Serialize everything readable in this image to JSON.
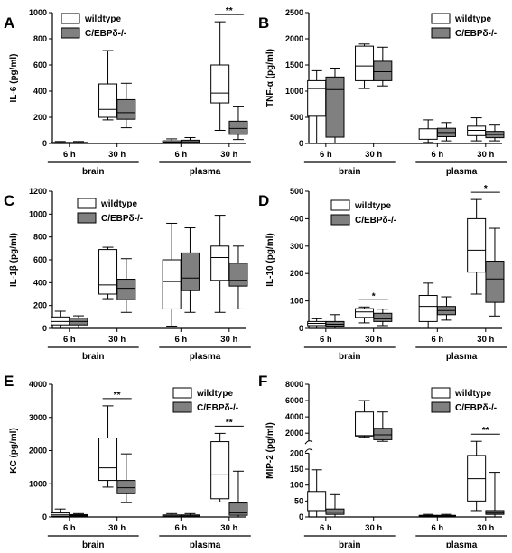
{
  "chart_data": [
    {
      "panel": "A",
      "type": "box",
      "ylabel": "IL-6 (pg/ml)",
      "ylim": [
        0,
        1000
      ],
      "yticks": [
        0,
        200,
        400,
        600,
        800,
        1000
      ],
      "categories": [
        "6 h",
        "30 h",
        "6 h",
        "30 h"
      ],
      "groups": [
        {
          "label": "brain",
          "categories": [
            0,
            1
          ]
        },
        {
          "label": "plasma",
          "categories": [
            2,
            3
          ]
        }
      ],
      "legend": "top-left",
      "series": [
        {
          "name": "wildtype",
          "color": "#ffffff",
          "boxes": [
            {
              "min": 0,
              "q1": 2,
              "median": 5,
              "q3": 8,
              "max": 15
            },
            {
              "min": 180,
              "q1": 200,
              "median": 260,
              "q3": 455,
              "max": 710
            },
            {
              "min": 0,
              "q1": 5,
              "median": 10,
              "q3": 20,
              "max": 35
            },
            {
              "min": 100,
              "q1": 310,
              "median": 385,
              "q3": 600,
              "max": 930
            }
          ]
        },
        {
          "name": "C/EBPδ-/-",
          "color": "#808080",
          "boxes": [
            {
              "min": 0,
              "q1": 2,
              "median": 4,
              "q3": 8,
              "max": 15
            },
            {
              "min": 120,
              "q1": 185,
              "median": 235,
              "q3": 335,
              "max": 460
            },
            {
              "min": 0,
              "q1": 5,
              "median": 12,
              "q3": 25,
              "max": 45
            },
            {
              "min": 30,
              "q1": 70,
              "median": 115,
              "q3": 170,
              "max": 280
            }
          ]
        }
      ],
      "annotations": [
        {
          "text": "**",
          "category": 3
        }
      ]
    },
    {
      "panel": "B",
      "type": "box",
      "ylabel": "TNF-α (pg/ml)",
      "ylim": [
        0,
        2500
      ],
      "yticks": [
        0,
        500,
        1000,
        1500,
        2000,
        2500
      ],
      "categories": [
        "6 h",
        "30 h",
        "6 h",
        "30 h"
      ],
      "groups": [
        {
          "label": "brain",
          "categories": [
            0,
            1
          ]
        },
        {
          "label": "plasma",
          "categories": [
            2,
            3
          ]
        }
      ],
      "legend": "top-right",
      "series": [
        {
          "name": "wildtype",
          "color": "#ffffff",
          "boxes": [
            {
              "min": 0,
              "q1": 520,
              "median": 1050,
              "q3": 1200,
              "max": 1390
            },
            {
              "min": 1050,
              "q1": 1200,
              "median": 1480,
              "q3": 1860,
              "max": 1900
            },
            {
              "min": 20,
              "q1": 80,
              "median": 180,
              "q3": 280,
              "max": 450
            },
            {
              "min": 50,
              "q1": 150,
              "median": 250,
              "q3": 330,
              "max": 490
            }
          ]
        },
        {
          "name": "C/EBPδ-/-",
          "color": "#808080",
          "boxes": [
            {
              "min": 0,
              "q1": 120,
              "median": 1030,
              "q3": 1270,
              "max": 1440
            },
            {
              "min": 1100,
              "q1": 1200,
              "median": 1370,
              "q3": 1570,
              "max": 1840
            },
            {
              "min": 50,
              "q1": 130,
              "median": 210,
              "q3": 290,
              "max": 400
            },
            {
              "min": 50,
              "q1": 110,
              "median": 170,
              "q3": 230,
              "max": 350
            }
          ]
        }
      ],
      "annotations": []
    },
    {
      "panel": "C",
      "type": "box",
      "ylabel": "IL-1β (pg/ml)",
      "ylim": [
        0,
        1200
      ],
      "yticks": [
        0,
        200,
        400,
        600,
        800,
        1000,
        1200
      ],
      "categories": [
        "6 h",
        "30 h",
        "6 h",
        "30 h"
      ],
      "groups": [
        {
          "label": "brain",
          "categories": [
            0,
            1
          ]
        },
        {
          "label": "plasma",
          "categories": [
            2,
            3
          ]
        }
      ],
      "legend": "top-left",
      "series": [
        {
          "name": "wildtype",
          "color": "#ffffff",
          "boxes": [
            {
              "min": 0,
              "q1": 30,
              "median": 60,
              "q3": 100,
              "max": 150
            },
            {
              "min": 260,
              "q1": 300,
              "median": 380,
              "q3": 690,
              "max": 710
            },
            {
              "min": 20,
              "q1": 170,
              "median": 410,
              "q3": 600,
              "max": 920
            },
            {
              "min": 140,
              "q1": 420,
              "median": 620,
              "q3": 720,
              "max": 990
            }
          ]
        },
        {
          "name": "C/EBPδ-/-",
          "color": "#808080",
          "boxes": [
            {
              "min": 0,
              "q1": 30,
              "median": 60,
              "q3": 90,
              "max": 110
            },
            {
              "min": 140,
              "q1": 250,
              "median": 350,
              "q3": 430,
              "max": 610
            },
            {
              "min": 140,
              "q1": 330,
              "median": 440,
              "q3": 660,
              "max": 880
            },
            {
              "min": 170,
              "q1": 370,
              "median": 420,
              "q3": 570,
              "max": 720
            }
          ]
        }
      ],
      "annotations": []
    },
    {
      "panel": "D",
      "type": "box",
      "ylabel": "IL-10 (pg/ml)",
      "ylim": [
        0,
        500
      ],
      "yticks": [
        0,
        100,
        200,
        300,
        400,
        500
      ],
      "categories": [
        "6 h",
        "30 h",
        "6 h",
        "30 h"
      ],
      "groups": [
        {
          "label": "brain",
          "categories": [
            0,
            1
          ]
        },
        {
          "label": "plasma",
          "categories": [
            2,
            3
          ]
        }
      ],
      "legend": "top-left",
      "series": [
        {
          "name": "wildtype",
          "color": "#ffffff",
          "boxes": [
            {
              "min": 0,
              "q1": 10,
              "median": 18,
              "q3": 25,
              "max": 35
            },
            {
              "min": 20,
              "q1": 40,
              "median": 60,
              "q3": 72,
              "max": 78
            },
            {
              "min": 0,
              "q1": 25,
              "median": 80,
              "q3": 120,
              "max": 165
            },
            {
              "min": 125,
              "q1": 205,
              "median": 285,
              "q3": 400,
              "max": 470
            }
          ]
        },
        {
          "name": "C/EBPδ-/-",
          "color": "#808080",
          "boxes": [
            {
              "min": 0,
              "q1": 8,
              "median": 15,
              "q3": 25,
              "max": 50
            },
            {
              "min": 10,
              "q1": 25,
              "median": 35,
              "q3": 55,
              "max": 70
            },
            {
              "min": 30,
              "q1": 50,
              "median": 65,
              "q3": 80,
              "max": 115
            },
            {
              "min": 45,
              "q1": 95,
              "median": 180,
              "q3": 245,
              "max": 365
            }
          ]
        }
      ],
      "annotations": [
        {
          "text": "*",
          "category": 1
        },
        {
          "text": "*",
          "category": 3
        }
      ]
    },
    {
      "panel": "E",
      "type": "box",
      "ylabel": "KC (pg/ml)",
      "ylim": [
        0,
        4000
      ],
      "yticks": [
        0,
        1000,
        2000,
        3000,
        4000
      ],
      "categories": [
        "6 h",
        "30 h",
        "6 h",
        "30 h"
      ],
      "groups": [
        {
          "label": "brain",
          "categories": [
            0,
            1
          ]
        },
        {
          "label": "plasma",
          "categories": [
            2,
            3
          ]
        }
      ],
      "legend": "top-right",
      "series": [
        {
          "name": "wildtype",
          "color": "#ffffff",
          "boxes": [
            {
              "min": 0,
              "q1": 20,
              "median": 60,
              "q3": 120,
              "max": 240
            },
            {
              "min": 900,
              "q1": 1100,
              "median": 1480,
              "q3": 2380,
              "max": 3350
            },
            {
              "min": 0,
              "q1": 10,
              "median": 30,
              "q3": 60,
              "max": 100
            },
            {
              "min": 450,
              "q1": 550,
              "median": 1270,
              "q3": 2270,
              "max": 2520
            }
          ]
        },
        {
          "name": "C/EBPδ-/-",
          "color": "#808080",
          "boxes": [
            {
              "min": 0,
              "q1": 20,
              "median": 40,
              "q3": 70,
              "max": 100
            },
            {
              "min": 430,
              "q1": 700,
              "median": 880,
              "q3": 1100,
              "max": 1900
            },
            {
              "min": 0,
              "q1": 10,
              "median": 30,
              "q3": 60,
              "max": 100
            },
            {
              "min": 0,
              "q1": 50,
              "median": 120,
              "q3": 420,
              "max": 1380
            }
          ]
        }
      ],
      "annotations": [
        {
          "text": "**",
          "category": 1
        },
        {
          "text": "**",
          "category": 3
        }
      ]
    },
    {
      "panel": "F",
      "type": "box",
      "ylabel": "MIP-2 (pg/ml)",
      "ylim": [
        0,
        8000
      ],
      "ybreak": [
        200,
        1000
      ],
      "yticks": [
        0,
        50,
        100,
        150,
        200,
        2000,
        4000,
        6000,
        8000
      ],
      "categories": [
        "6 h",
        "30 h",
        "6 h",
        "30 h"
      ],
      "groups": [
        {
          "label": "brain",
          "categories": [
            0,
            1
          ]
        },
        {
          "label": "plasma",
          "categories": [
            2,
            3
          ]
        }
      ],
      "legend": "top-right",
      "series": [
        {
          "name": "wildtype",
          "color": "#ffffff",
          "boxes": [
            {
              "min": 0,
              "q1": 20,
              "median": 20,
              "q3": 80,
              "max": 148
            },
            {
              "min": 1500,
              "q1": 1650,
              "median": 1700,
              "q3": 4600,
              "max": 6000
            },
            {
              "min": 0,
              "q1": 2,
              "median": 3,
              "q3": 5,
              "max": 8
            },
            {
              "min": 20,
              "q1": 50,
              "median": 120,
              "q3": 193,
              "max": 228
            }
          ]
        },
        {
          "name": "C/EBPδ-/-",
          "color": "#808080",
          "boxes": [
            {
              "min": 0,
              "q1": 8,
              "median": 15,
              "q3": 25,
              "max": 70
            },
            {
              "min": 700,
              "q1": 1200,
              "median": 1800,
              "q3": 2600,
              "max": 4600
            },
            {
              "min": 0,
              "q1": 2,
              "median": 3,
              "q3": 5,
              "max": 8
            },
            {
              "min": 0,
              "q1": 8,
              "median": 12,
              "q3": 20,
              "max": 140
            }
          ]
        }
      ],
      "annotations": [
        {
          "text": "**",
          "category": 3
        }
      ]
    }
  ]
}
